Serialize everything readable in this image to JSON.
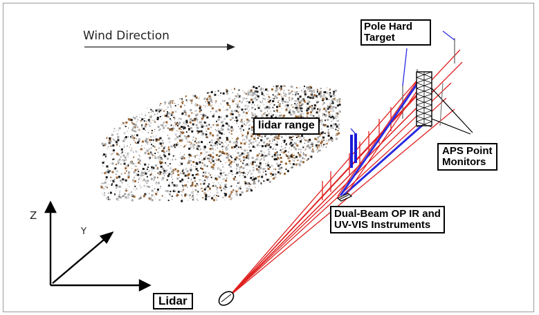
{
  "labels": {
    "wind_direction": "Wind Direction",
    "pole_hard_target_line1": "Pole Hard",
    "pole_hard_target_line2": "Target",
    "lidar_range": "lidar range",
    "aps_line1": "APS Point",
    "aps_line2": "Monitors",
    "dual_beam_line1": "Dual-Beam OP IR and",
    "dual_beam_line2": "UV-VIS Instruments",
    "lidar": "Lidar",
    "axis_z": "Z",
    "axis_y": "Y"
  },
  "colors": {
    "beam": "#e02020",
    "dual_beam": "#2a2ae0",
    "plume_dark": "#1a1a1a",
    "plume_brown": "#9a6330",
    "plume_gray": "#a8a8a8",
    "frame": "#9a9a9a"
  }
}
